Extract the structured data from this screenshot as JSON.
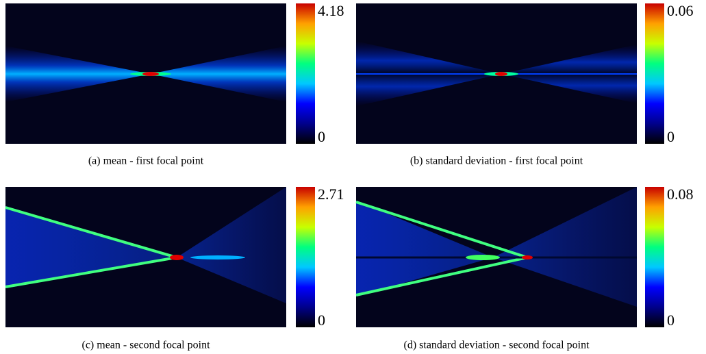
{
  "chart_data": [
    {
      "type": "heatmap",
      "caption": "(a) mean - first focal point",
      "clim": [
        0,
        4.18
      ],
      "cticks": [
        0,
        4.18
      ],
      "colormap": [
        "#000000",
        "#00008b",
        "#0000ff",
        "#00c8ff",
        "#00ff80",
        "#c8ff00",
        "#ffa000",
        "#c80000"
      ]
    },
    {
      "type": "heatmap",
      "caption": "(b) standard deviation - first focal point",
      "clim": [
        0,
        0.06
      ],
      "cticks": [
        0,
        0.06
      ],
      "colormap": [
        "#000000",
        "#00008b",
        "#0000ff",
        "#00c8ff",
        "#00ff80",
        "#c8ff00",
        "#ffa000",
        "#c80000"
      ]
    },
    {
      "type": "heatmap",
      "caption": "(c) mean - second focal point",
      "clim": [
        0,
        2.71
      ],
      "cticks": [
        0,
        2.71
      ],
      "colormap": [
        "#000000",
        "#00008b",
        "#0000ff",
        "#00c8ff",
        "#00ff80",
        "#c8ff00",
        "#ffa000",
        "#c80000"
      ]
    },
    {
      "type": "heatmap",
      "caption": "(d) standard deviation - second focal point",
      "clim": [
        0,
        0.08
      ],
      "cticks": [
        0,
        0.08
      ],
      "colormap": [
        "#000000",
        "#00008b",
        "#0000ff",
        "#00c8ff",
        "#00ff80",
        "#c8ff00",
        "#ffa000",
        "#c80000"
      ]
    }
  ]
}
